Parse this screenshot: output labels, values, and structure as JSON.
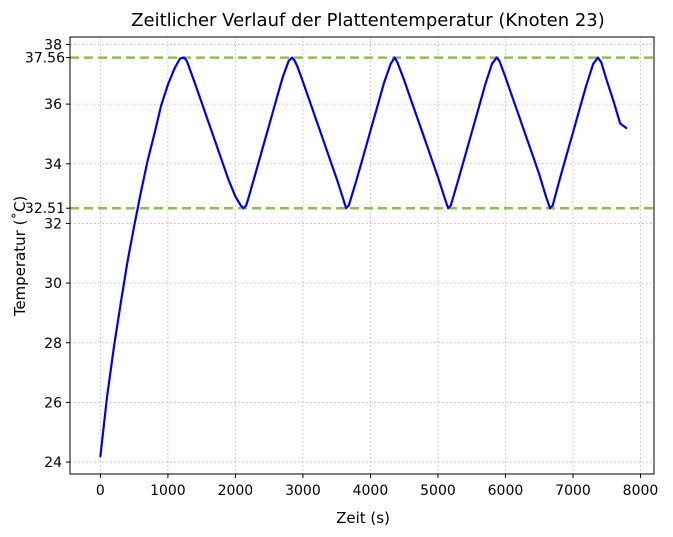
{
  "chart_data": {
    "type": "line",
    "title": "Zeitlicher Verlauf der Plattentemperatur (Knoten 23)",
    "xlabel": "Zeit (s)",
    "ylabel": "Temperatur (˚C)",
    "xlim": [
      -450,
      8200
    ],
    "ylim": [
      23.6,
      38.25
    ],
    "xticks": [
      0,
      1000,
      2000,
      3000,
      4000,
      5000,
      6000,
      7000,
      8000
    ],
    "yticks": [
      24,
      26,
      28,
      30,
      32,
      34,
      36,
      38
    ],
    "grid": true,
    "series": [
      {
        "color": "#0000ee",
        "x": [
          0,
          100,
          200,
          300,
          400,
          500,
          600,
          700,
          800,
          900,
          1000,
          1100,
          1180,
          1240,
          1280,
          1320,
          1400,
          1500,
          1600,
          1700,
          1800,
          1900,
          2000,
          2080,
          2120,
          2160,
          2200,
          2300,
          2400,
          2500,
          2600,
          2700,
          2790,
          2840,
          2880,
          2920,
          3000,
          3100,
          3200,
          3300,
          3400,
          3500,
          3600,
          3640,
          3680,
          3800,
          3900,
          4000,
          4100,
          4200,
          4300,
          4360,
          4400,
          4500,
          4600,
          4700,
          4800,
          4900,
          5000,
          5100,
          5150,
          5190,
          5300,
          5400,
          5500,
          5600,
          5700,
          5800,
          5870,
          5910,
          6000,
          6100,
          6200,
          6300,
          6400,
          6500,
          6600,
          6660,
          6700,
          6800,
          6900,
          7000,
          7100,
          7200,
          7300,
          7370,
          7420,
          7500,
          7600,
          7700,
          7790
        ],
        "y": [
          24.2,
          26.2,
          27.85,
          29.3,
          30.7,
          31.9,
          33.05,
          34.1,
          35.0,
          35.95,
          36.65,
          37.2,
          37.53,
          37.56,
          37.45,
          37.2,
          36.7,
          36.05,
          35.4,
          34.75,
          34.1,
          33.45,
          32.9,
          32.6,
          32.51,
          32.6,
          32.9,
          33.7,
          34.5,
          35.3,
          36.1,
          36.9,
          37.45,
          37.56,
          37.45,
          37.25,
          36.75,
          36.1,
          35.45,
          34.8,
          34.15,
          33.5,
          32.8,
          32.51,
          32.6,
          33.5,
          34.3,
          35.1,
          35.9,
          36.7,
          37.35,
          37.56,
          37.4,
          36.8,
          36.15,
          35.5,
          34.85,
          34.2,
          33.55,
          32.85,
          32.51,
          32.6,
          33.45,
          34.25,
          35.05,
          35.85,
          36.65,
          37.35,
          37.56,
          37.45,
          36.9,
          36.25,
          35.6,
          34.95,
          34.3,
          33.65,
          32.9,
          32.51,
          32.6,
          33.45,
          34.25,
          35.05,
          35.85,
          36.65,
          37.35,
          37.56,
          37.4,
          36.8,
          36.1,
          35.35,
          35.2
        ]
      }
    ],
    "reference_lines": [
      {
        "y": 37.56,
        "label": "37.56",
        "color": "#8bc34a"
      },
      {
        "y": 32.51,
        "label": "32.51",
        "color": "#8bc34a"
      }
    ]
  }
}
